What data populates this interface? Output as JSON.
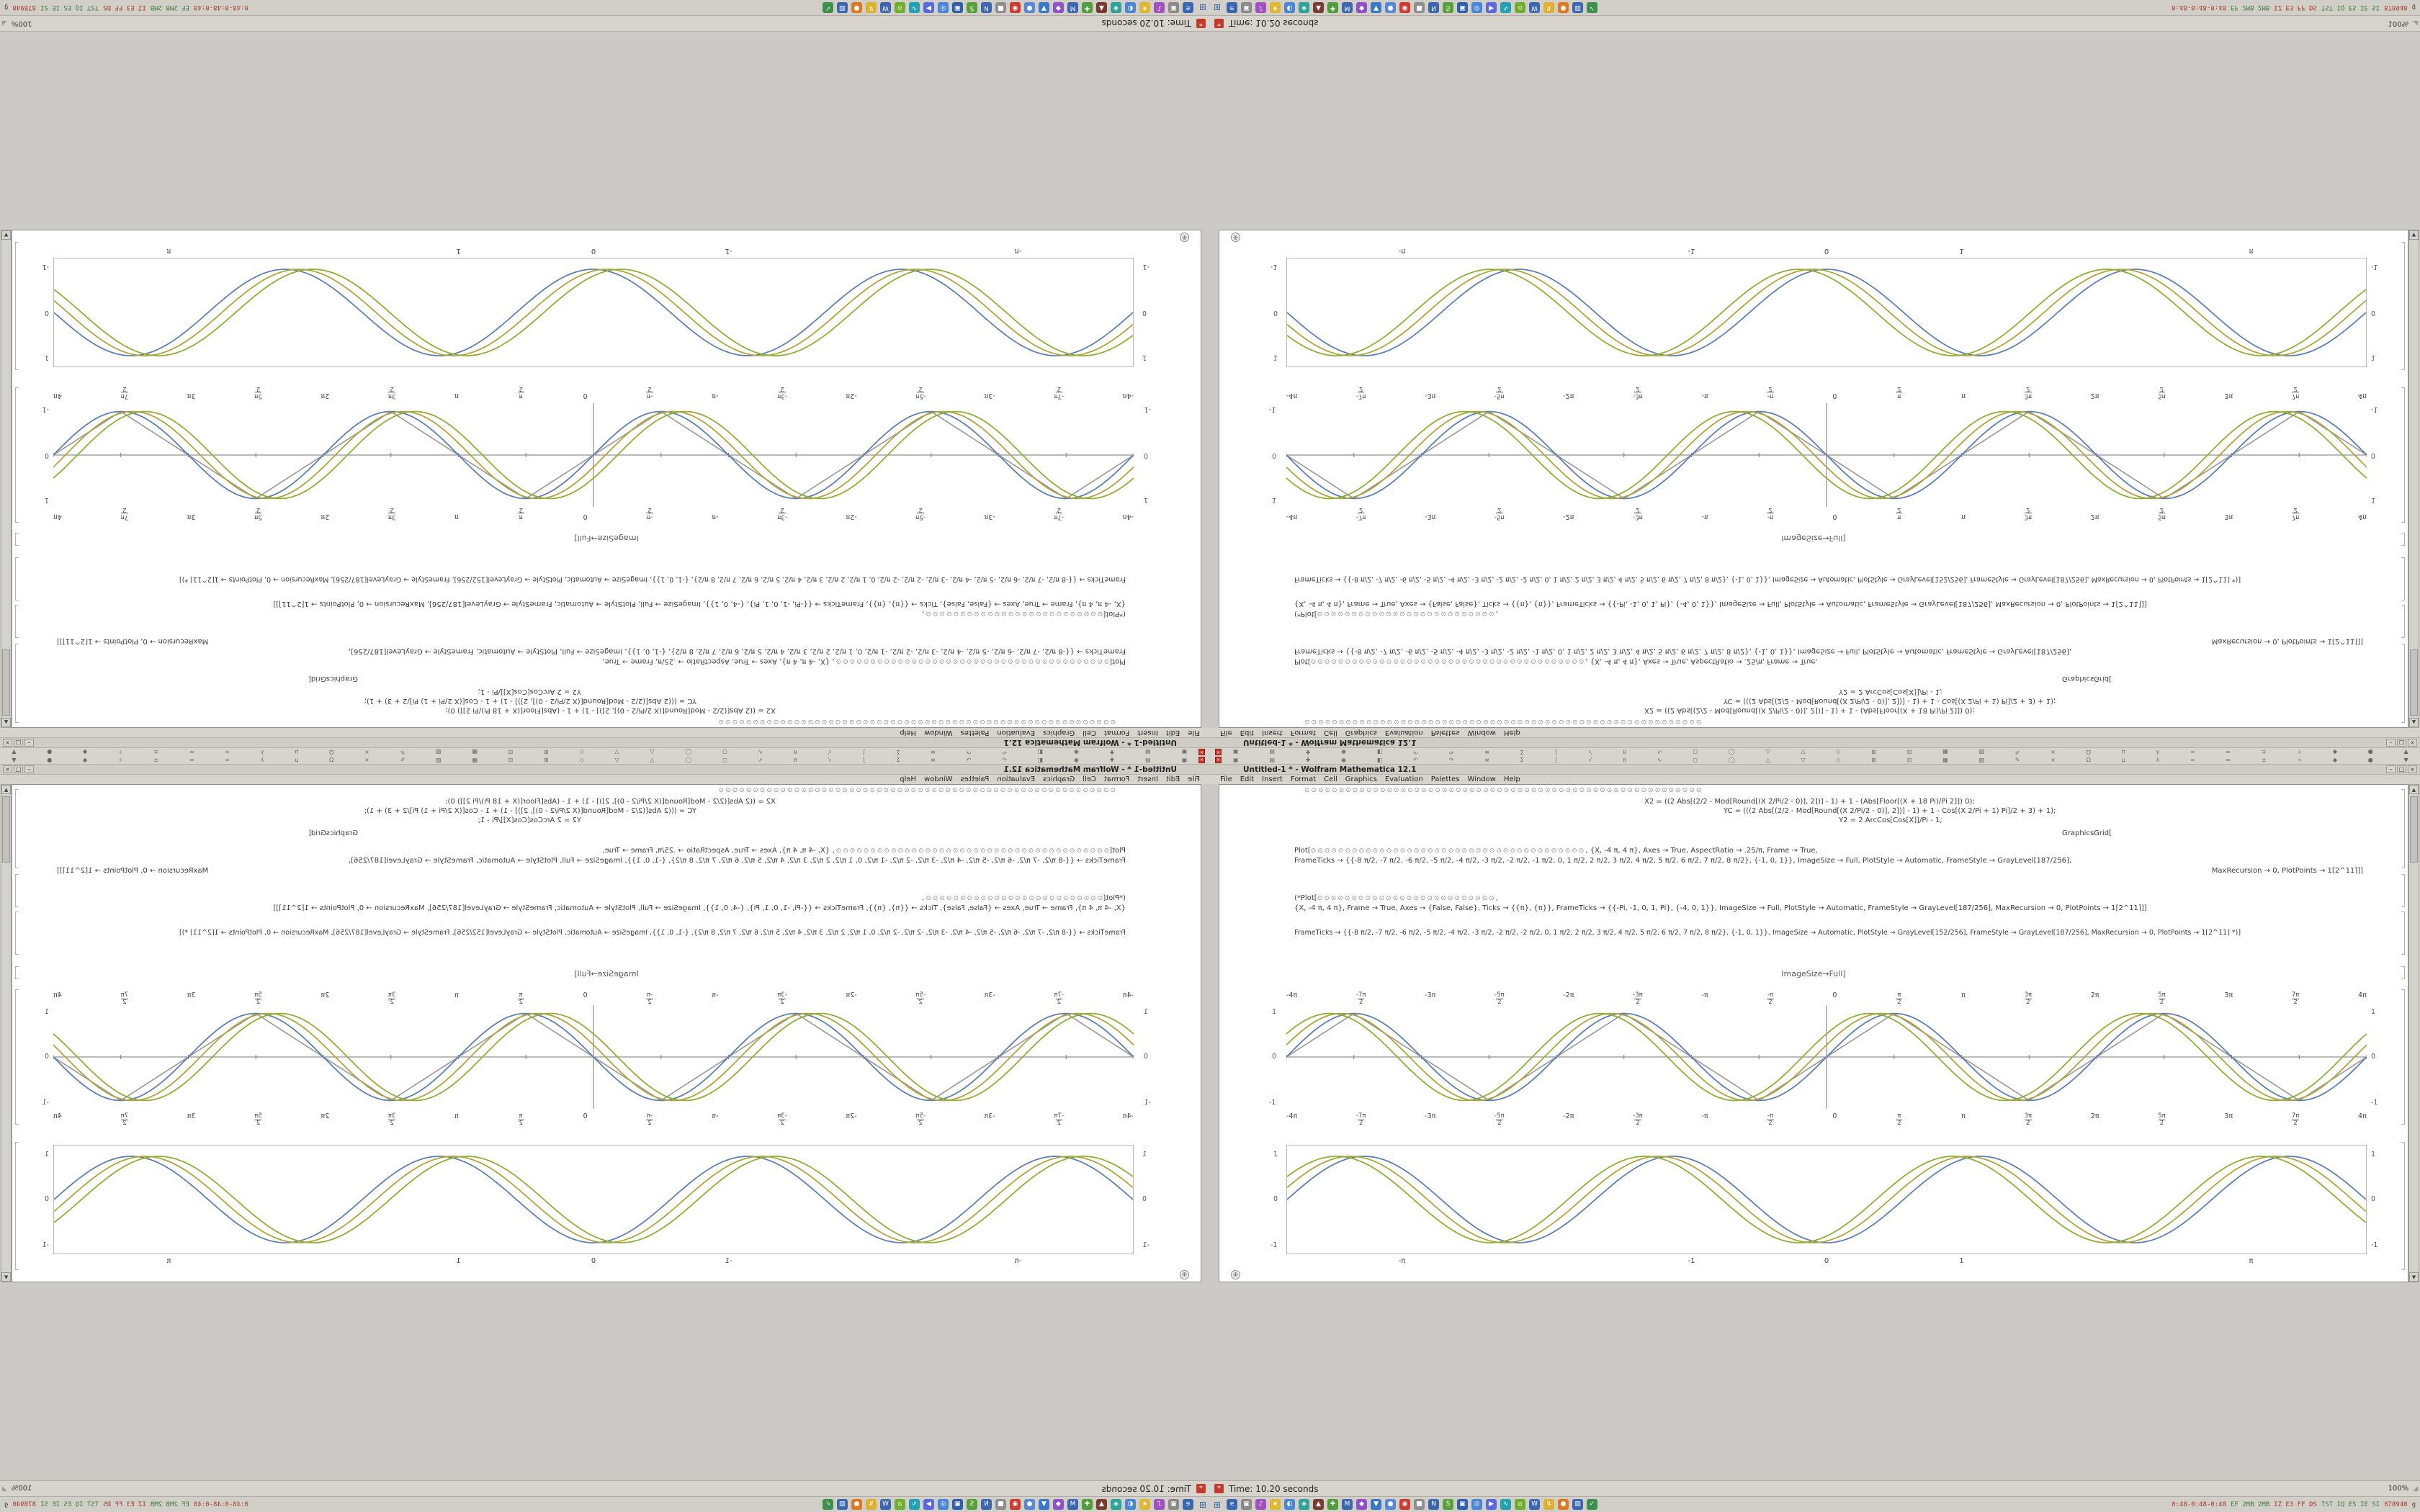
{
  "colors": {
    "plot_series": [
      "#5e81b5",
      "#b3a33a",
      "#8fb032"
    ],
    "plot_gray": "#989898",
    "accent_red": "#c4392b"
  },
  "screen": {
    "window": {
      "title": "Untitled-1 * - Wolfram Mathematica 12.1",
      "minimize": "–",
      "maximize": "□",
      "close": "×"
    },
    "menu": {
      "items": [
        "File",
        "Edit",
        "Insert",
        "Format",
        "Cell",
        "Graphics",
        "Evaluation",
        "Palettes",
        "Window",
        "Help"
      ]
    },
    "panel": {
      "close_glyph": "×",
      "icons": [
        "▣",
        "▤",
        "✚",
        "◉",
        "◧",
        "↶",
        "↷",
        "≡",
        "Σ",
        "∫",
        "√",
        "π",
        "∿",
        "◻",
        "◯",
        "△",
        "▽",
        "◇",
        "⊞",
        "⊟",
        "▦",
        "▧",
        "✎",
        "×",
        "Ω",
        "μ",
        "λ",
        "∞",
        "≈",
        "±",
        "÷",
        "◆",
        "●",
        "▼"
      ]
    },
    "scrollbar": {
      "up": "▲",
      "down": "▼"
    },
    "notebook": {
      "badge": "⊕",
      "cells": {
        "circles1": "⊙⊙⊙⊙⊙⊙⊙⊙⊙⊙⊙⊙⊙⊙⊙⊙⊙⊙⊙⊙⊙⊙⊙⊙⊙⊙⊙⊙⊙⊙⊙⊙⊙⊙⊙⊙⊙⊙⊙⊙⊙⊙⊙⊙⊙⊙⊙⊙⊙⊙⊙⊙⊙⊙⊙⊙⊙⊙",
        "code1_l1": "X2 = ((2 Abs[(2/2 - Mod[Round[(X 2/Pi/2 - 0)], 2])] - 1) + 1 - (Abs[Floor[(X + 18 Pi)/Pi 2]]) 0);",
        "code1_l2": "YC = (((2 Abs[(2/2 - Mod[Round[(X 2/Pi/2 - 0)], 2])] - 1) + 1 - Cos[(X 2/Pi + 1) Pi]/2 + 3) + 1);",
        "code1_l3": "Y2 = 2 ArcCos[Cos[X]]/Pi - 1;",
        "code1_l4": "GraphicsGrid[",
        "plot_open": "Plot[",
        "circles2": "⊙⊙⊙⊙⊙⊙⊙⊙⊙⊙⊙⊙⊙⊙⊙⊙⊙⊙⊙⊙⊙⊙⊙⊙⊙⊙⊙⊙⊙⊙⊙⊙⊙⊙⊙⊙⊙⊙⊙⊙",
        "plot_args": ", {X, -4 π, 4 π}, Axes → True, AspectRatio → .25/π, Frame → True,",
        "frameticks1": "FrameTicks → {{-8 π/2, -7 π/2, -6 π/2, -5 π/2, -4 π/2, -3 π/2, -2 π/2, -1 π/2, 0, 1 π/2, 2 π/2, 3 π/2, 4 π/2, 5 π/2, 6 π/2, 7 π/2, 8 π/2}, {-1, 0, 1}}, ImageSize → Full, PlotStyle → Automatic, FrameStyle → GrayLevel[187/256],",
        "plot_end": "MaxRecursion → 0, PlotPoints → 1⌈2^11⌉]]",
        "comment_open": "(*Plot[",
        "circles3": "⊙⊙⊙⊙⊙⊙⊙⊙⊙⊙⊙⊙⊙⊙⊙⊙⊙⊙⊙⊙⊙⊙⊙⊙⊙⊙",
        "comment_tail": ",",
        "comment_line": "{X, -4 π, 4 π}, Frame → True, Axes → {False, False}, Ticks → {{π}, {π}}, FrameTicks → {{-Pi, -1, 0, 1, Pi}, {-4, 0, 1}}, ImageSize → Full, PlotStyle → Automatic, FrameStyle → GrayLevel[187/256], MaxRecursion → 0, PlotPoints → 1⌈2^11⌉]]",
        "frameticks2": "FrameTicks → {{-8 π/2, -7 π/2, -6 π/2, -5 π/2, -4 π/2, -3 π/2, -2 π/2, -2 π/2, 0, 1 π/2, 2 π/2, 3 π/2, 4 π/2, 5 π/2, 6 π/2, 7 π/2, 8 π/2}, {-1, 0, 1}}, ImageSize → Automatic, PlotStyle → GrayLevel[152/256], FrameStyle → GrayLevel[187/256], MaxRecursion → 0, PlotPoints → 1⌈2^11⌉ *)]",
        "out_label": "ImageSize→Full]"
      },
      "axes_plot": {
        "x_ticks": [
          "-4π",
          "-7π/2",
          "-3π",
          "-5π/2",
          "-2π",
          "-3π/2",
          "-π",
          "-π/2",
          "0",
          "π/2",
          "π",
          "3π/2",
          "2π",
          "5π/2",
          "3π",
          "7π/2",
          "4π"
        ],
        "y_ticks": [
          "1",
          "0",
          "-1"
        ]
      },
      "framed_plot": {
        "x_ticks": [
          {
            "label": "-π",
            "pos": 10.7
          },
          {
            "label": "-1",
            "pos": 37.5
          },
          {
            "label": "0",
            "pos": 50
          },
          {
            "label": "1",
            "pos": 62.5
          },
          {
            "label": "π",
            "pos": 89.3
          }
        ],
        "y_ticks": [
          "1",
          "0",
          "-1"
        ]
      }
    },
    "statusbar": {
      "icon_glyph": "*",
      "text": "Time: 10.20 seconds",
      "zoom": "100%",
      "grip": "◢"
    },
    "taskbar": {
      "start_glyph": "⊞",
      "icons": [
        {
          "glyph": "e",
          "color": "#3b66b0"
        },
        {
          "glyph": "▣",
          "color": "#8a8a8a"
        },
        {
          "glyph": "♪",
          "color": "#a050c0"
        },
        {
          "glyph": "★",
          "color": "#e0b830"
        },
        {
          "glyph": "◐",
          "color": "#4a86d8"
        },
        {
          "glyph": "◈",
          "color": "#2fa29a"
        },
        {
          "glyph": "▲",
          "color": "#7a3a30"
        },
        {
          "glyph": "✚",
          "color": "#4f9e3c"
        },
        {
          "glyph": "M",
          "color": "#3b66b0"
        },
        {
          "glyph": "◆",
          "color": "#9050c8"
        },
        {
          "glyph": "▼",
          "color": "#3a78c8"
        },
        {
          "glyph": "●",
          "color": "#5a88d8"
        },
        {
          "glyph": "◉",
          "color": "#cc3b2f"
        },
        {
          "glyph": "■",
          "color": "#8f8f8f"
        },
        {
          "glyph": "N",
          "color": "#3b66b0"
        },
        {
          "glyph": "S",
          "color": "#57a03a"
        },
        {
          "glyph": "▣",
          "color": "#2f5fa8"
        },
        {
          "glyph": "◎",
          "color": "#4a86d8"
        },
        {
          "glyph": "▶",
          "color": "#5a6ade"
        },
        {
          "glyph": "∿",
          "color": "#23a0b4"
        },
        {
          "glyph": "⌂",
          "color": "#6fae2f"
        },
        {
          "glyph": "W",
          "color": "#3b66b0"
        },
        {
          "glyph": "↯",
          "color": "#e0b030"
        },
        {
          "glyph": "●",
          "color": "#e07820"
        },
        {
          "glyph": "▥",
          "color": "#3b66b0"
        },
        {
          "glyph": "✓",
          "color": "#3f8f4f"
        }
      ],
      "tray_segments": [
        {
          "text": "0:48-0:48-0:48",
          "color": "#a83a2a"
        },
        {
          "text": "EF 2MB 2MB",
          "color": "#3f7f3f"
        },
        {
          "text": "IZ E3 FF DS",
          "color": "#a83a2a"
        },
        {
          "text": "TST IQ ES IE SI",
          "color": "#3f7f3f"
        },
        {
          "text": "878940",
          "color": "#a83a2a"
        },
        {
          "text": "g",
          "color": "#444444"
        }
      ]
    }
  }
}
